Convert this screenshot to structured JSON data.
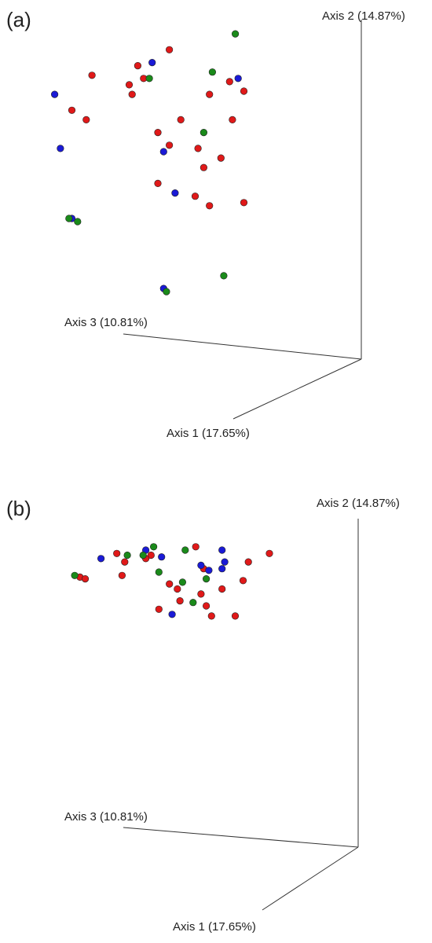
{
  "colors": {
    "red": "#e01919",
    "blue": "#1a1ad6",
    "green": "#1a8a1a",
    "axis": "#333333"
  },
  "chart_data": [
    {
      "type": "scatter",
      "panel_label": "(a)",
      "axes": {
        "axis1": "Axis 1 (17.65%)",
        "axis2": "Axis 2 (14.87%)",
        "axis3": "Axis 3 (10.81%)"
      },
      "series": [
        {
          "color": "red",
          "points": [
            [
              0.44,
              0.93
            ],
            [
              0.17,
              0.85
            ],
            [
              0.33,
              0.88
            ],
            [
              0.3,
              0.82
            ],
            [
              0.35,
              0.84
            ],
            [
              0.65,
              0.83
            ],
            [
              0.7,
              0.8
            ],
            [
              0.48,
              0.71
            ],
            [
              0.58,
              0.79
            ],
            [
              0.1,
              0.74
            ],
            [
              0.15,
              0.71
            ],
            [
              0.31,
              0.79
            ],
            [
              0.4,
              0.67
            ],
            [
              0.44,
              0.63
            ],
            [
              0.54,
              0.62
            ],
            [
              0.66,
              0.71
            ],
            [
              0.62,
              0.59
            ],
            [
              0.56,
              0.56
            ],
            [
              0.4,
              0.51
            ],
            [
              0.58,
              0.44
            ],
            [
              0.7,
              0.45
            ],
            [
              0.53,
              0.47
            ]
          ]
        },
        {
          "color": "blue",
          "points": [
            [
              0.38,
              0.89
            ],
            [
              0.04,
              0.79
            ],
            [
              0.68,
              0.84
            ],
            [
              0.06,
              0.62
            ],
            [
              0.42,
              0.61
            ],
            [
              0.46,
              0.48
            ],
            [
              0.1,
              0.4
            ],
            [
              0.42,
              0.18
            ]
          ]
        },
        {
          "color": "green",
          "points": [
            [
              0.67,
              0.98
            ],
            [
              0.37,
              0.84
            ],
            [
              0.59,
              0.86
            ],
            [
              0.56,
              0.67
            ],
            [
              0.09,
              0.4
            ],
            [
              0.12,
              0.39
            ],
            [
              0.63,
              0.22
            ],
            [
              0.43,
              0.17
            ]
          ]
        }
      ]
    },
    {
      "type": "scatter",
      "panel_label": "(b)",
      "axes": {
        "axis1": "Axis 1 (17.65%)",
        "axis2": "Axis 2 (14.87%)",
        "axis3": "Axis 3 (10.81%)"
      },
      "series": [
        {
          "color": "red",
          "points": [
            [
              0.52,
              0.95
            ],
            [
              0.35,
              0.9
            ],
            [
              0.22,
              0.91
            ],
            [
              0.33,
              0.88
            ],
            [
              0.25,
              0.86
            ],
            [
              0.55,
              0.82
            ],
            [
              0.8,
              0.91
            ],
            [
              0.72,
              0.86
            ],
            [
              0.08,
              0.77
            ],
            [
              0.1,
              0.76
            ],
            [
              0.24,
              0.78
            ],
            [
              0.7,
              0.75
            ],
            [
              0.42,
              0.73
            ],
            [
              0.45,
              0.7
            ],
            [
              0.54,
              0.67
            ],
            [
              0.62,
              0.7
            ],
            [
              0.46,
              0.63
            ],
            [
              0.56,
              0.6
            ],
            [
              0.38,
              0.58
            ],
            [
              0.58,
              0.54
            ],
            [
              0.67,
              0.54
            ]
          ]
        },
        {
          "color": "blue",
          "points": [
            [
              0.33,
              0.93
            ],
            [
              0.62,
              0.93
            ],
            [
              0.16,
              0.88
            ],
            [
              0.39,
              0.89
            ],
            [
              0.63,
              0.86
            ],
            [
              0.54,
              0.84
            ],
            [
              0.57,
              0.81
            ],
            [
              0.62,
              0.82
            ],
            [
              0.43,
              0.55
            ]
          ]
        },
        {
          "color": "green",
          "points": [
            [
              0.36,
              0.95
            ],
            [
              0.48,
              0.93
            ],
            [
              0.26,
              0.9
            ],
            [
              0.32,
              0.9
            ],
            [
              0.06,
              0.78
            ],
            [
              0.38,
              0.8
            ],
            [
              0.47,
              0.74
            ],
            [
              0.56,
              0.76
            ],
            [
              0.51,
              0.62
            ]
          ]
        }
      ]
    }
  ]
}
